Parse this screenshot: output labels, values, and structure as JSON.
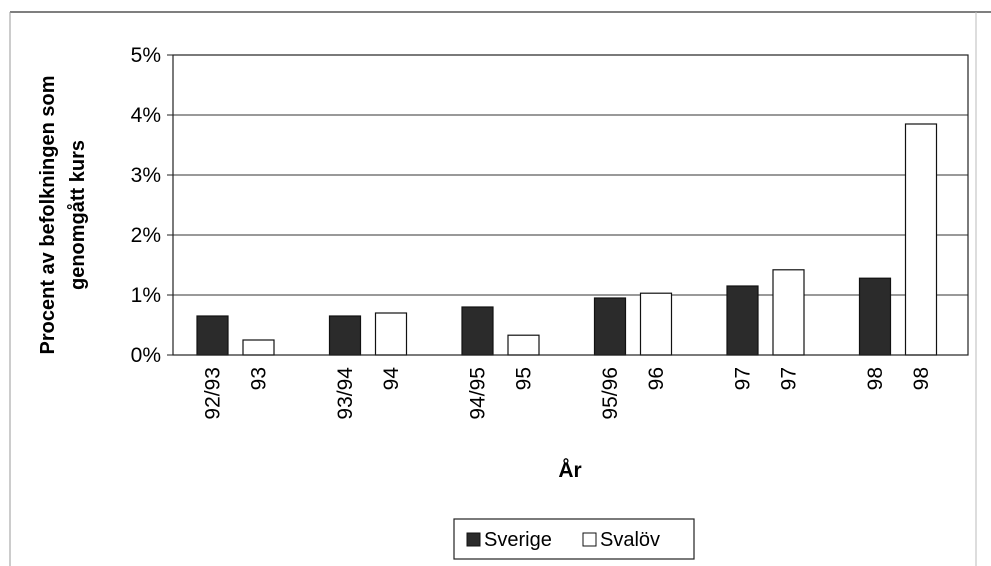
{
  "chart_data": {
    "type": "bar",
    "xlabel": "År",
    "ylabel": "Procent av befolkningen som genomgått kurs",
    "ylim": [
      0,
      5
    ],
    "yticks": [
      "0%",
      "1%",
      "2%",
      "3%",
      "4%",
      "5%"
    ],
    "grid": true,
    "legend_position": "bottom-center",
    "groups": [
      {
        "series": "Sverige",
        "label": "92/93",
        "value": 0.65
      },
      {
        "series": "Svalöv",
        "label": "93",
        "value": 0.25
      },
      {
        "series": "Sverige",
        "label": "93/94",
        "value": 0.65
      },
      {
        "series": "Svalöv",
        "label": "94",
        "value": 0.7
      },
      {
        "series": "Sverige",
        "label": "94/95",
        "value": 0.8
      },
      {
        "series": "Svalöv",
        "label": "95",
        "value": 0.33
      },
      {
        "series": "Sverige",
        "label": "95/96",
        "value": 0.95
      },
      {
        "series": "Svalöv",
        "label": "96",
        "value": 1.03
      },
      {
        "series": "Sverige",
        "label": "97",
        "value": 1.15
      },
      {
        "series": "Svalöv",
        "label": "97",
        "value": 1.42
      },
      {
        "series": "Sverige",
        "label": "98",
        "value": 1.28
      },
      {
        "series": "Svalöv",
        "label": "98",
        "value": 3.85
      }
    ],
    "series": [
      {
        "name": "Sverige",
        "color": "#2b2b2b"
      },
      {
        "name": "Svalöv",
        "color": "#ffffff"
      }
    ]
  }
}
